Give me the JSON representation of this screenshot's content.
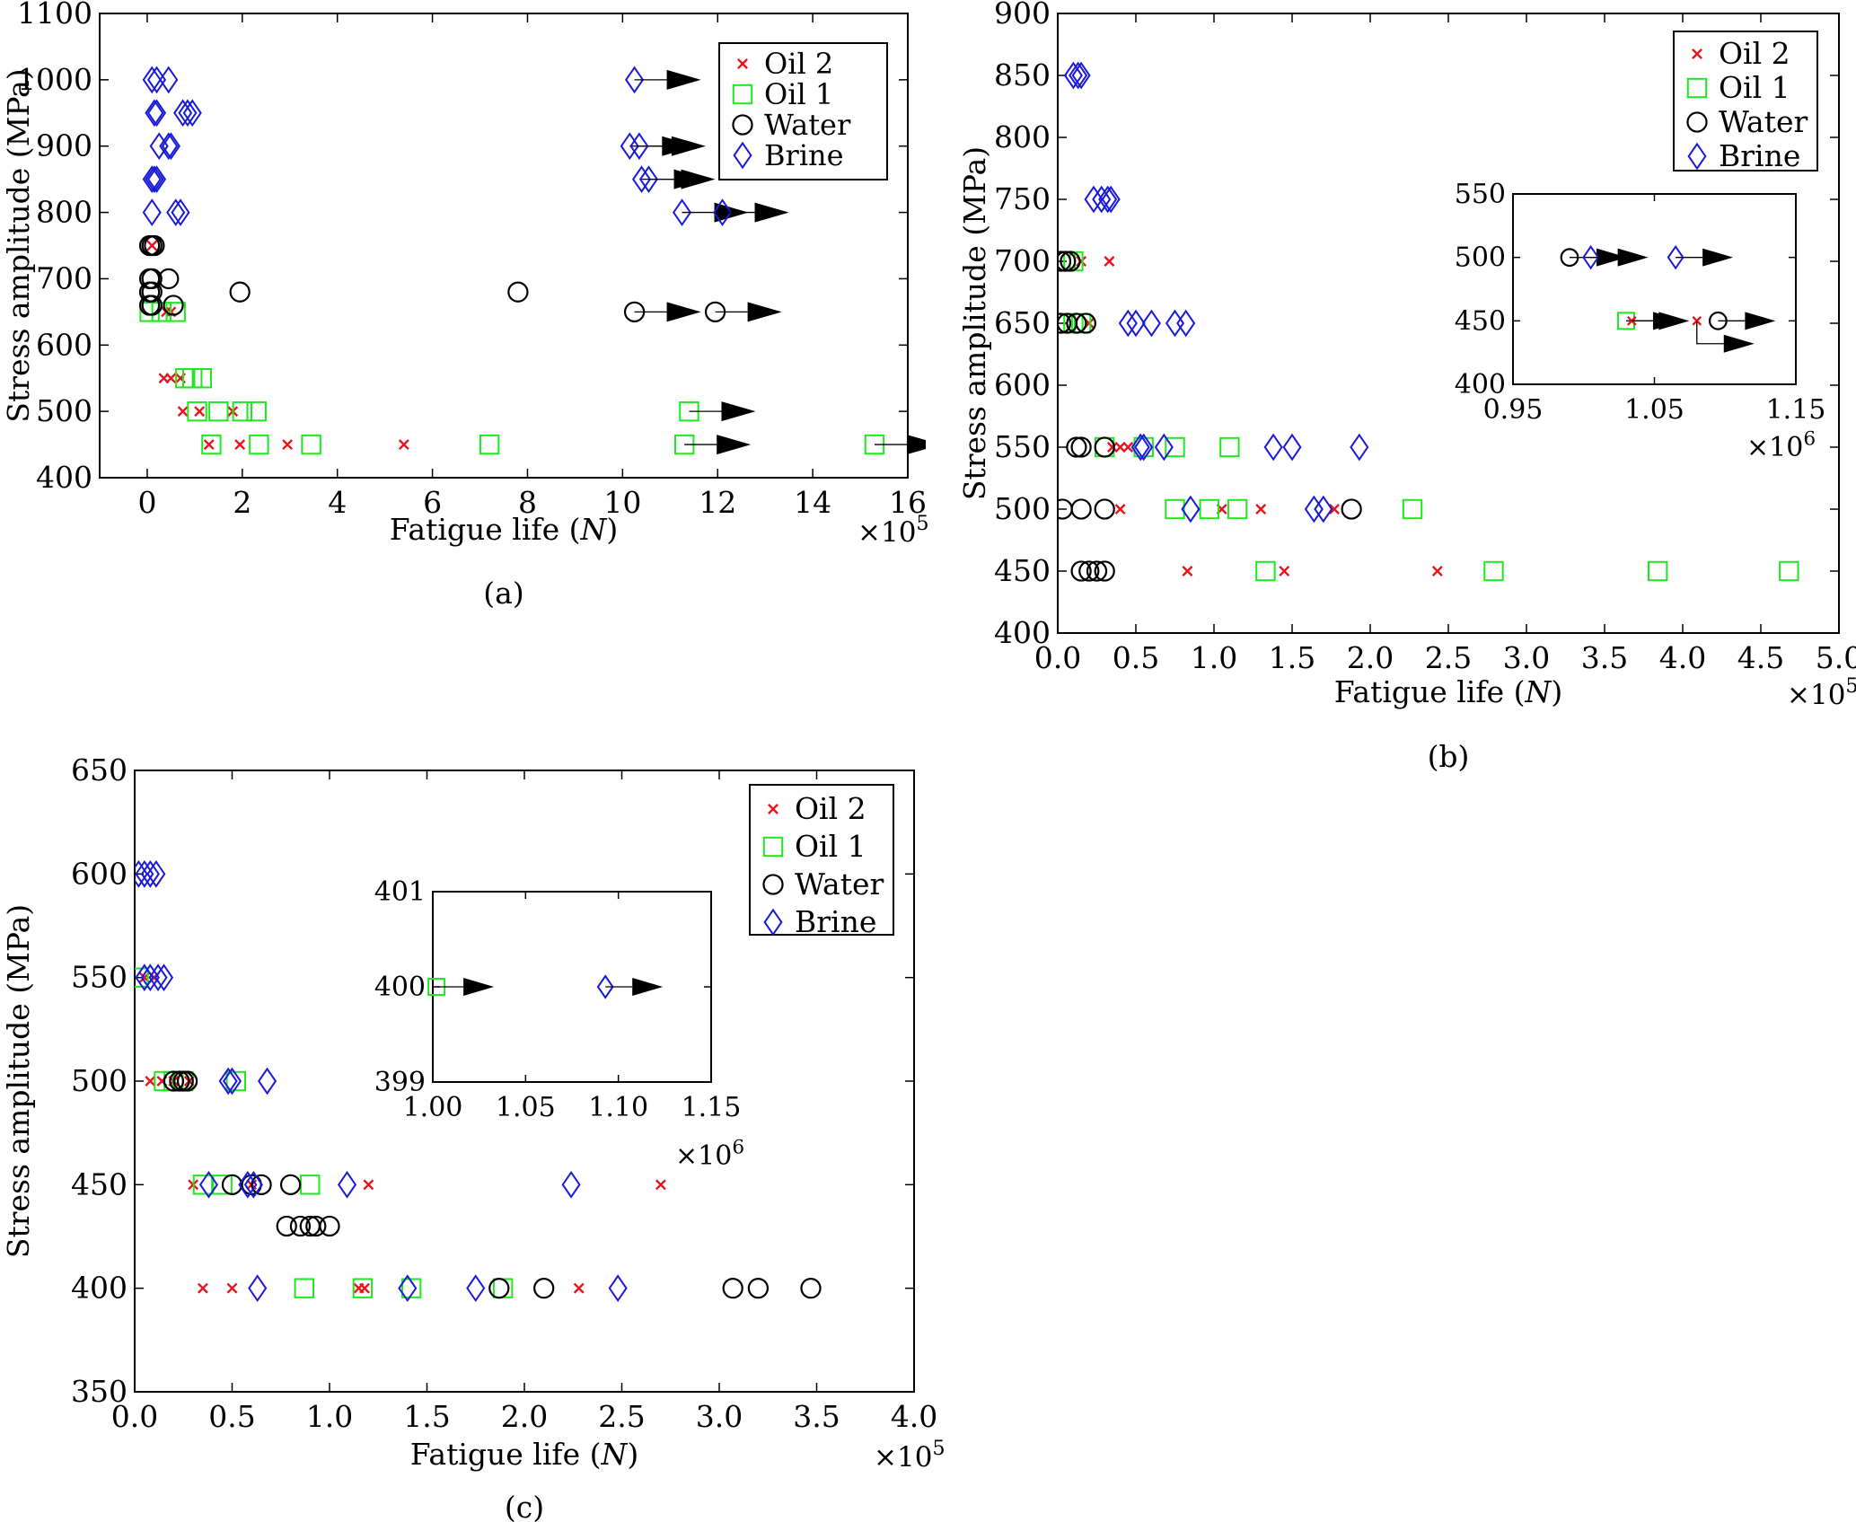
{
  "colors": {
    "oil2": "#e8141c",
    "oil1": "#1ee81e",
    "water": "#000000",
    "brine": "#1a1ad9",
    "frame": "#000000"
  },
  "chart_data": [
    {
      "id": "a",
      "type": "scatter",
      "caption": "(a)",
      "xlabel": "Fatigue life (N)",
      "ylabel": "Stress amplitude (MPa)",
      "x_multiplier": "×10^5",
      "xlim": [
        -1,
        16
      ],
      "ylim": [
        400,
        1100
      ],
      "xticks": [
        0,
        2,
        4,
        6,
        8,
        10,
        12,
        14,
        16
      ],
      "yticks": [
        400,
        500,
        600,
        700,
        800,
        900,
        1000,
        1100
      ],
      "legend": {
        "position": "top-right",
        "entries": [
          {
            "series": "oil2",
            "label": "Oil 2"
          },
          {
            "series": "oil1",
            "label": "Oil 1"
          },
          {
            "series": "water",
            "label": "Water"
          },
          {
            "series": "brine",
            "label": "Brine"
          }
        ]
      },
      "series": {
        "oil2": [
          [
            0.1,
            750
          ],
          [
            0.4,
            650
          ],
          [
            0.5,
            650
          ],
          [
            0.35,
            550
          ],
          [
            0.5,
            550
          ],
          [
            0.7,
            550
          ],
          [
            0.75,
            500
          ],
          [
            1.1,
            500
          ],
          [
            1.8,
            500
          ],
          [
            1.3,
            450
          ],
          [
            1.95,
            450
          ],
          [
            2.95,
            450
          ],
          [
            5.4,
            450
          ]
        ],
        "oil1": [
          [
            0.05,
            650
          ],
          [
            0.3,
            650
          ],
          [
            0.6,
            650
          ],
          [
            0.8,
            550
          ],
          [
            0.95,
            550
          ],
          [
            1.15,
            550
          ],
          [
            1.05,
            500
          ],
          [
            1.5,
            500
          ],
          [
            2.0,
            500
          ],
          [
            2.3,
            500
          ],
          [
            1.35,
            450
          ],
          [
            2.35,
            450
          ],
          [
            3.45,
            450
          ],
          [
            7.2,
            450
          ]
        ],
        "water": [
          [
            0.05,
            750
          ],
          [
            0.1,
            750
          ],
          [
            0.15,
            750
          ],
          [
            0.05,
            700
          ],
          [
            0.1,
            700
          ],
          [
            0.45,
            700
          ],
          [
            0.05,
            680
          ],
          [
            0.1,
            680
          ],
          [
            1.95,
            680
          ],
          [
            7.8,
            680
          ],
          [
            0.05,
            660
          ],
          [
            0.1,
            660
          ],
          [
            0.55,
            660
          ]
        ],
        "brine": [
          [
            0.1,
            1000
          ],
          [
            0.2,
            1000
          ],
          [
            0.45,
            1000
          ],
          [
            0.15,
            950
          ],
          [
            0.2,
            950
          ],
          [
            0.75,
            950
          ],
          [
            0.85,
            950
          ],
          [
            0.95,
            950
          ],
          [
            0.25,
            900
          ],
          [
            0.45,
            900
          ],
          [
            0.5,
            900
          ],
          [
            0.1,
            850
          ],
          [
            0.15,
            850
          ],
          [
            0.2,
            850
          ],
          [
            0.1,
            800
          ],
          [
            0.6,
            800
          ],
          [
            0.7,
            800
          ]
        ]
      },
      "runouts": [
        {
          "series": "brine",
          "x": 10.25,
          "y": 1000
        },
        {
          "series": "brine",
          "x": 10.15,
          "y": 900
        },
        {
          "series": "brine",
          "x": 10.35,
          "y": 900
        },
        {
          "series": "brine",
          "x": 10.4,
          "y": 850
        },
        {
          "series": "brine",
          "x": 10.55,
          "y": 850
        },
        {
          "series": "brine",
          "x": 11.25,
          "y": 800
        },
        {
          "series": "brine",
          "x": 12.1,
          "y": 800
        },
        {
          "series": "water",
          "x": 10.25,
          "y": 650
        },
        {
          "series": "water",
          "x": 11.95,
          "y": 650
        },
        {
          "series": "oil1",
          "x": 11.4,
          "y": 500
        },
        {
          "series": "oil1",
          "x": 11.3,
          "y": 450
        },
        {
          "series": "oil1",
          "x": 15.3,
          "y": 450
        }
      ]
    },
    {
      "id": "b",
      "type": "scatter",
      "caption": "(b)",
      "xlabel": "Fatigue life (N)",
      "ylabel": "Stress amplitude (MPa)",
      "x_multiplier": "×10^5",
      "xlim": [
        0,
        5
      ],
      "ylim": [
        400,
        900
      ],
      "xticks": [
        0.0,
        0.5,
        1.0,
        1.5,
        2.0,
        2.5,
        3.0,
        3.5,
        4.0,
        4.5,
        5.0
      ],
      "yticks": [
        400,
        450,
        500,
        550,
        600,
        650,
        700,
        750,
        800,
        850,
        900
      ],
      "legend": {
        "position": "top-right",
        "entries": [
          {
            "series": "oil2",
            "label": "Oil 2"
          },
          {
            "series": "oil1",
            "label": "Oil 1"
          },
          {
            "series": "water",
            "label": "Water"
          },
          {
            "series": "brine",
            "label": "Brine"
          }
        ]
      },
      "series": {
        "oil2": [
          [
            0.15,
            700
          ],
          [
            0.33,
            700
          ],
          [
            0.2,
            650
          ],
          [
            0.45,
            550
          ],
          [
            0.4,
            550
          ],
          [
            0.35,
            550
          ],
          [
            0.4,
            500
          ],
          [
            1.05,
            500
          ],
          [
            1.3,
            500
          ],
          [
            1.77,
            500
          ],
          [
            0.83,
            450
          ],
          [
            1.45,
            450
          ],
          [
            2.43,
            450
          ]
        ],
        "oil1": [
          [
            0.02,
            700
          ],
          [
            0.05,
            700
          ],
          [
            0.1,
            700
          ],
          [
            0.05,
            650
          ],
          [
            0.1,
            650
          ],
          [
            0.15,
            650
          ],
          [
            0.3,
            550
          ],
          [
            0.55,
            550
          ],
          [
            0.75,
            550
          ],
          [
            1.1,
            550
          ],
          [
            0.75,
            500
          ],
          [
            0.97,
            500
          ],
          [
            1.15,
            500
          ],
          [
            2.27,
            500
          ],
          [
            1.33,
            450
          ],
          [
            2.79,
            450
          ],
          [
            3.84,
            450
          ],
          [
            4.68,
            450
          ]
        ],
        "water": [
          [
            0.02,
            700
          ],
          [
            0.05,
            700
          ],
          [
            0.08,
            700
          ],
          [
            0.02,
            650
          ],
          [
            0.06,
            650
          ],
          [
            0.12,
            650
          ],
          [
            0.18,
            650
          ],
          [
            0.12,
            550
          ],
          [
            0.15,
            550
          ],
          [
            0.3,
            550
          ],
          [
            0.03,
            500
          ],
          [
            0.15,
            500
          ],
          [
            0.3,
            500
          ],
          [
            1.88,
            500
          ],
          [
            0.15,
            450
          ],
          [
            0.2,
            450
          ],
          [
            0.25,
            450
          ],
          [
            0.3,
            450
          ]
        ],
        "brine": [
          [
            0.1,
            850
          ],
          [
            0.13,
            850
          ],
          [
            0.15,
            850
          ],
          [
            0.23,
            750
          ],
          [
            0.28,
            750
          ],
          [
            0.32,
            750
          ],
          [
            0.34,
            750
          ],
          [
            0.45,
            650
          ],
          [
            0.5,
            650
          ],
          [
            0.6,
            650
          ],
          [
            0.75,
            650
          ],
          [
            0.82,
            650
          ],
          [
            0.53,
            550
          ],
          [
            0.55,
            550
          ],
          [
            0.68,
            550
          ],
          [
            1.38,
            550
          ],
          [
            1.5,
            550
          ],
          [
            1.93,
            550
          ],
          [
            0.85,
            500
          ],
          [
            1.64,
            500
          ],
          [
            1.7,
            500
          ]
        ]
      },
      "inset": {
        "xlim": [
          0.95,
          1.15
        ],
        "ylim": [
          400,
          550
        ],
        "xticks": [
          0.95,
          1.05,
          1.15
        ],
        "xtick_labels": [
          "0.95",
          "1.05",
          "1.15"
        ],
        "yticks": [
          400,
          450,
          500,
          550
        ],
        "x_multiplier": "×10^6",
        "runouts": [
          {
            "series": "water",
            "x": 0.99,
            "y": 500
          },
          {
            "series": "brine",
            "x": 1.005,
            "y": 500
          },
          {
            "series": "brine",
            "x": 1.065,
            "y": 500
          },
          {
            "series": "oil1",
            "x": 1.03,
            "y": 450
          },
          {
            "series": "oil2",
            "x": 1.034,
            "y": 450
          },
          {
            "series": "oil2",
            "x": 1.08,
            "y": 450,
            "drop_to": 432
          },
          {
            "series": "water",
            "x": 1.095,
            "y": 450
          }
        ]
      }
    },
    {
      "id": "c",
      "type": "scatter",
      "caption": "(c)",
      "xlabel": "Fatigue life (N)",
      "ylabel": "Stress amplitude (MPa)",
      "x_multiplier": "×10^5",
      "xlim": [
        0,
        4
      ],
      "ylim": [
        350,
        650
      ],
      "xticks": [
        0.0,
        0.5,
        1.0,
        1.5,
        2.0,
        2.5,
        3.0,
        3.5,
        4.0
      ],
      "yticks": [
        350,
        400,
        450,
        500,
        550,
        600,
        650
      ],
      "legend": {
        "position": "top-right",
        "entries": [
          {
            "series": "oil2",
            "label": "Oil 2"
          },
          {
            "series": "oil1",
            "label": "Oil 1"
          },
          {
            "series": "water",
            "label": "Water"
          },
          {
            "series": "brine",
            "label": "Brine"
          }
        ]
      },
      "series": {
        "oil2": [
          [
            0.05,
            550
          ],
          [
            0.1,
            550
          ],
          [
            0.08,
            500
          ],
          [
            0.14,
            500
          ],
          [
            0.2,
            500
          ],
          [
            0.28,
            500
          ],
          [
            0.3,
            450
          ],
          [
            0.6,
            450
          ],
          [
            1.2,
            450
          ],
          [
            2.7,
            450
          ],
          [
            0.35,
            400
          ],
          [
            0.5,
            400
          ],
          [
            1.15,
            400
          ],
          [
            1.18,
            400
          ],
          [
            2.28,
            400
          ]
        ],
        "oil1": [
          [
            0.02,
            550
          ],
          [
            0.15,
            500
          ],
          [
            0.2,
            500
          ],
          [
            0.25,
            500
          ],
          [
            0.52,
            500
          ],
          [
            0.35,
            450
          ],
          [
            0.45,
            450
          ],
          [
            0.9,
            450
          ],
          [
            0.87,
            400
          ],
          [
            1.17,
            400
          ],
          [
            1.42,
            400
          ],
          [
            1.89,
            400
          ]
        ],
        "water": [
          [
            0.2,
            500
          ],
          [
            0.23,
            500
          ],
          [
            0.25,
            500
          ],
          [
            0.27,
            500
          ],
          [
            0.5,
            450
          ],
          [
            0.6,
            450
          ],
          [
            0.65,
            450
          ],
          [
            0.8,
            450
          ],
          [
            0.78,
            430
          ],
          [
            0.85,
            430
          ],
          [
            0.9,
            430
          ],
          [
            0.93,
            430
          ],
          [
            1.0,
            430
          ],
          [
            1.87,
            400
          ],
          [
            2.1,
            400
          ],
          [
            3.07,
            400
          ],
          [
            3.2,
            400
          ],
          [
            3.47,
            400
          ]
        ],
        "brine": [
          [
            0.02,
            600
          ],
          [
            0.05,
            600
          ],
          [
            0.08,
            600
          ],
          [
            0.11,
            600
          ],
          [
            0.05,
            550
          ],
          [
            0.08,
            550
          ],
          [
            0.12,
            550
          ],
          [
            0.15,
            550
          ],
          [
            0.48,
            500
          ],
          [
            0.5,
            500
          ],
          [
            0.68,
            500
          ],
          [
            0.38,
            450
          ],
          [
            0.58,
            450
          ],
          [
            0.61,
            450
          ],
          [
            1.09,
            450
          ],
          [
            2.24,
            450
          ],
          [
            0.63,
            400
          ],
          [
            1.4,
            400
          ],
          [
            1.75,
            400
          ],
          [
            2.48,
            400
          ]
        ]
      },
      "inset": {
        "xlim": [
          1.0,
          1.15
        ],
        "ylim": [
          399,
          401
        ],
        "xticks": [
          1.0,
          1.05,
          1.1,
          1.15
        ],
        "xtick_labels": [
          "1.00",
          "1.05",
          "1.10",
          "1.15"
        ],
        "yticks": [
          399,
          400,
          401
        ],
        "x_multiplier": "×10^6",
        "runouts": [
          {
            "series": "oil1",
            "x": 1.002,
            "y": 400
          },
          {
            "series": "brine",
            "x": 1.093,
            "y": 400
          }
        ]
      }
    }
  ]
}
